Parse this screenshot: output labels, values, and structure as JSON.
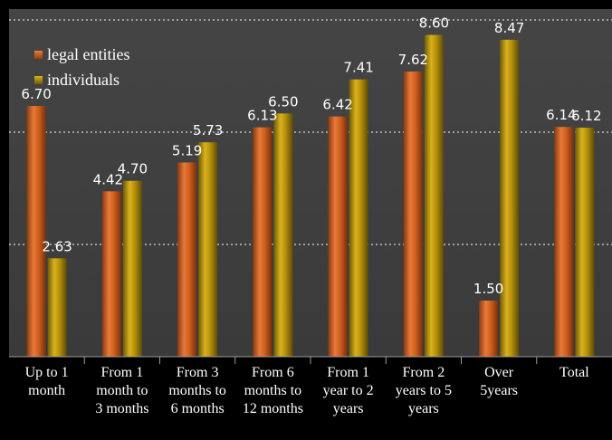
{
  "chart_data": {
    "type": "bar",
    "categories": [
      "Up to 1\nmonth",
      "From 1\nmonth to\n3 months",
      "From 3\nmonths to\n6 months",
      "From 6\nmonths to\n12 months",
      "From 1\nyear to 2\nyears",
      "From 2\nyears to 5\nyears",
      "Over\n5years",
      "Total"
    ],
    "series": [
      {
        "name": "legal entities",
        "values": [
          6.7,
          4.42,
          5.19,
          6.13,
          6.42,
          7.62,
          1.5,
          6.14
        ],
        "labels": [
          "6.70",
          "4.42",
          "5.19",
          "6.13",
          "6.42",
          "7.62",
          "1.50",
          "6.14"
        ],
        "color": "#d2691e"
      },
      {
        "name": "individuals",
        "values": [
          2.63,
          4.7,
          5.73,
          6.5,
          7.41,
          8.6,
          8.47,
          6.12
        ],
        "labels": [
          "2.63",
          "4.70",
          "5.73",
          "6.50",
          "7.41",
          "8.60",
          "8.47",
          "6.12"
        ],
        "color": "#b8860b"
      }
    ],
    "ylim": [
      0,
      9.0
    ],
    "gridlines": [
      3.0,
      6.0,
      9.0
    ],
    "grid": true,
    "legend_position": "top-left",
    "title": "",
    "xlabel": "",
    "ylabel": ""
  }
}
